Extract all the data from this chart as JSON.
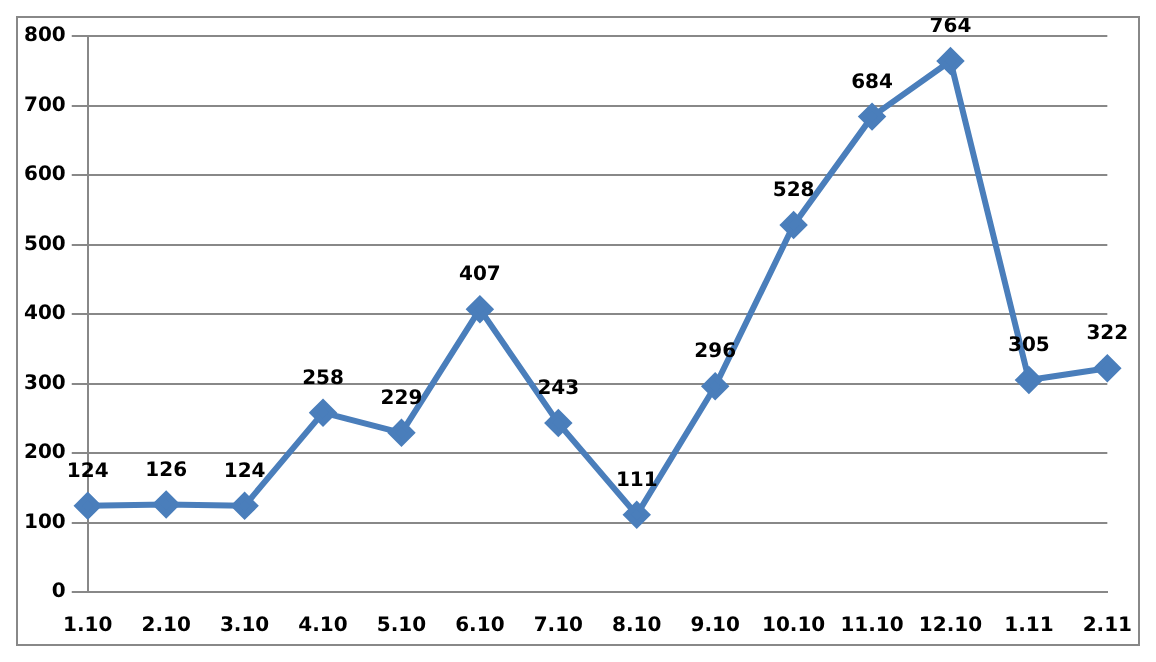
{
  "chart_data": {
    "type": "line",
    "categories": [
      "1.10",
      "2.10",
      "3.10",
      "4.10",
      "5.10",
      "6.10",
      "7.10",
      "8.10",
      "9.10",
      "10.10",
      "11.10",
      "12.10",
      "1.11",
      "2.11"
    ],
    "series": [
      {
        "color": "#4a7ebb",
        "values": [
          124,
          126,
          124,
          258,
          229,
          407,
          243,
          111,
          296,
          528,
          684,
          764,
          305,
          322
        ]
      }
    ],
    "ylim": [
      0,
      800
    ],
    "yticks": [
      0,
      100,
      200,
      300,
      400,
      500,
      600,
      700,
      800
    ],
    "grid": "y",
    "legend": false,
    "marker": "diamond",
    "line_style": "solid",
    "data_labels": true
  }
}
